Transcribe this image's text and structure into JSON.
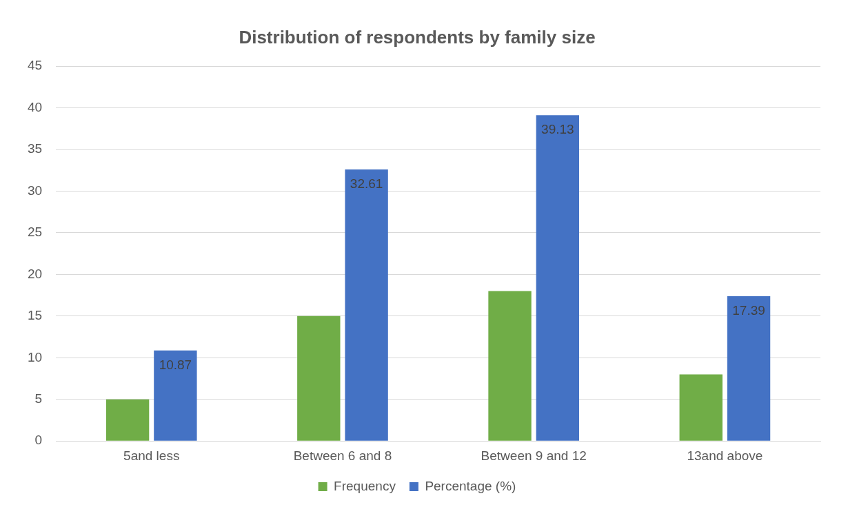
{
  "chart_data": {
    "type": "bar",
    "title": "Distribution of respondents by family size",
    "categories": [
      "5and less",
      "Between 6 and 8",
      "Between 9 and 12",
      "13and above"
    ],
    "series": [
      {
        "name": "Frequency",
        "color": "#70ad47",
        "values": [
          5,
          15,
          18,
          8
        ]
      },
      {
        "name": "Percentage (%)",
        "color": "#4472c4",
        "values": [
          10.87,
          32.61,
          39.13,
          17.39
        ],
        "value_labels": [
          "10.87",
          "32.61",
          "39.13",
          "17.39"
        ]
      }
    ],
    "ylim": [
      0,
      45
    ],
    "yticks": [
      0,
      5,
      10,
      15,
      20,
      25,
      30,
      35,
      40,
      45
    ],
    "grid": "y",
    "legend": "bottom"
  }
}
